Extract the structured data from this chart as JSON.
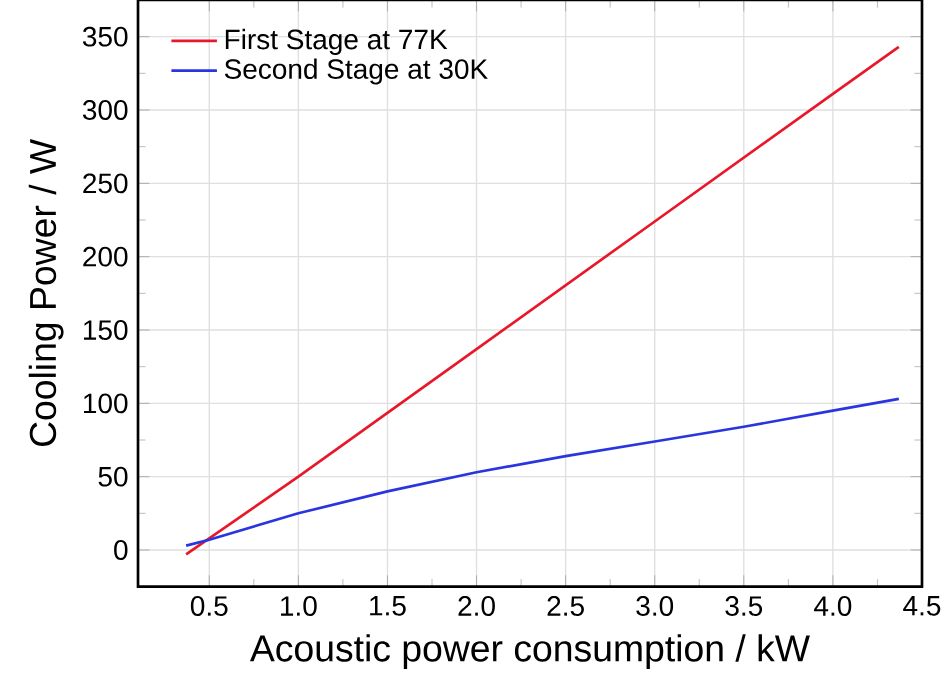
{
  "chart_data": {
    "type": "line",
    "xlabel": "Acoustic power consumption / kW",
    "ylabel": "Cooling Power / W",
    "xlim": [
      0.1,
      4.5
    ],
    "ylim": [
      -25,
      375
    ],
    "xticks": [
      {
        "value": 0.5,
        "label": "0.5"
      },
      {
        "value": 1.0,
        "label": "1.0"
      },
      {
        "value": 1.5,
        "label": "1.5"
      },
      {
        "value": 2.0,
        "label": "2.0"
      },
      {
        "value": 2.5,
        "label": "2.5"
      },
      {
        "value": 3.0,
        "label": "3.0"
      },
      {
        "value": 3.5,
        "label": "3.5"
      },
      {
        "value": 4.0,
        "label": "4.0"
      },
      {
        "value": 4.5,
        "label": "4.5"
      }
    ],
    "yticks": [
      0,
      50,
      100,
      150,
      200,
      250,
      300,
      350
    ],
    "grid": true,
    "legend": "top left",
    "marker": "none",
    "line_style": "solid",
    "series": [
      {
        "name": "First Stage at 77K",
        "color": "#e8182a",
        "x": [
          0.37,
          1.0,
          2.0,
          3.0,
          4.0,
          4.37
        ],
        "values": [
          -3,
          50,
          137,
          224,
          311,
          343
        ]
      },
      {
        "name": "Second Stage at 30K",
        "color": "#2a35e0",
        "x": [
          0.37,
          0.5,
          1.0,
          1.5,
          2.0,
          2.5,
          3.0,
          3.5,
          4.0,
          4.37
        ],
        "values": [
          3,
          7,
          25,
          40,
          53,
          64,
          74,
          84,
          95,
          103
        ]
      }
    ]
  }
}
